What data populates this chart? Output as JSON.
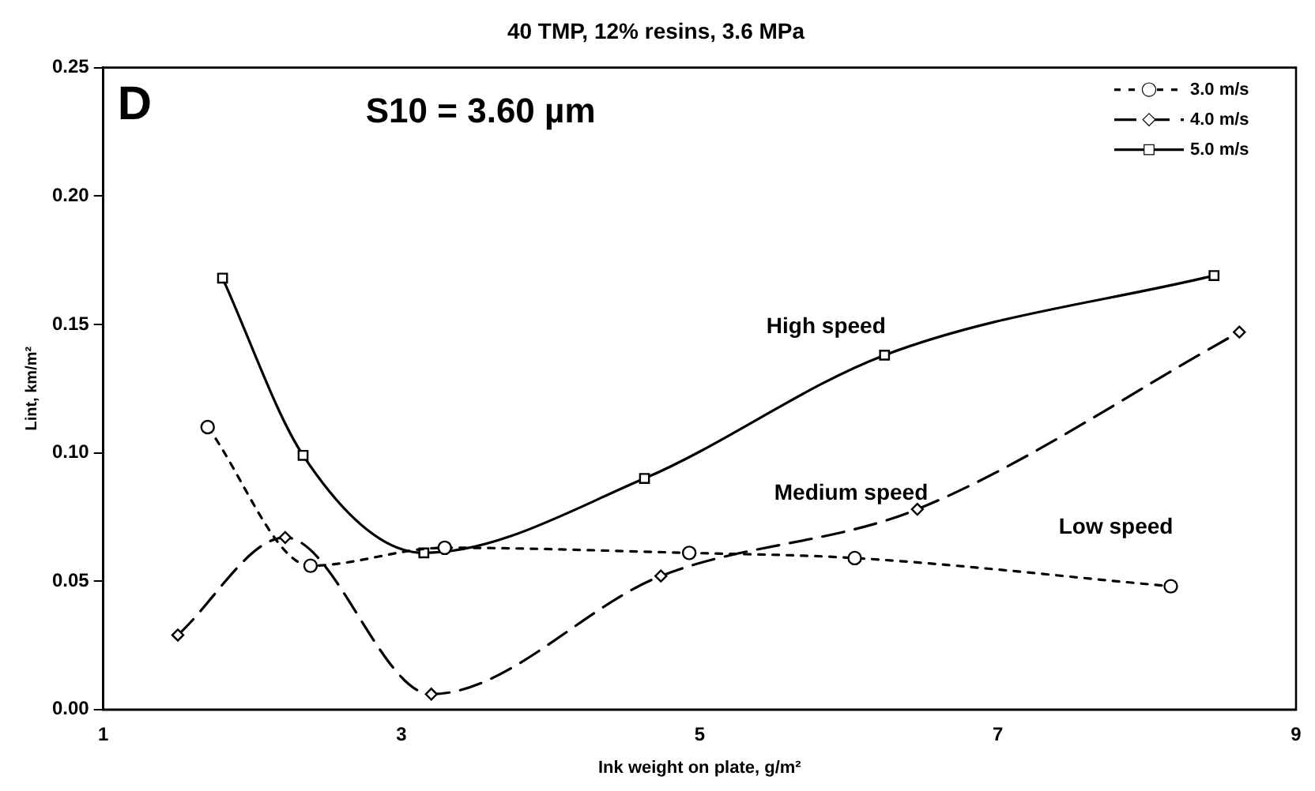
{
  "chart_data": {
    "type": "line",
    "title": "40 TMP, 12% resins, 3.6 MPa",
    "xlabel": "Ink weight on plate, g/m²",
    "ylabel": "Lint, km/m²",
    "xlim": [
      1,
      9
    ],
    "xticks": [
      1,
      3,
      5,
      7,
      9
    ],
    "ylim": [
      0,
      0.25
    ],
    "yticks": [
      {
        "value": 0,
        "label": "0.00"
      },
      {
        "value": 0.05,
        "label": "0.05"
      },
      {
        "value": 0.1,
        "label": "0.10"
      },
      {
        "value": 0.15,
        "label": "0.15"
      },
      {
        "value": 0.2,
        "label": "0.20"
      },
      {
        "value": 0.25,
        "label": "0.25"
      }
    ],
    "grid": false,
    "legend": "top right",
    "series": [
      {
        "name": "3.0 m/s",
        "color": "#000000",
        "line_style": "dotted",
        "marker": "circle",
        "x": [
          1.7,
          2.39,
          3.29,
          4.93,
          6.04,
          8.16
        ],
        "values": [
          0.11,
          0.056,
          0.063,
          0.061,
          0.059,
          0.048
        ]
      },
      {
        "name": "4.0 m/s",
        "color": "#000000",
        "line_style": "dashed",
        "marker": "diamond",
        "x": [
          1.5,
          2.22,
          3.2,
          4.74,
          6.46,
          8.62
        ],
        "values": [
          0.029,
          0.067,
          0.006,
          0.052,
          0.078,
          0.147
        ]
      },
      {
        "name": "5.0 m/s",
        "color": "#000000",
        "line_style": "solid",
        "marker": "square",
        "x": [
          1.8,
          2.34,
          3.15,
          4.63,
          6.24,
          8.45
        ],
        "values": [
          0.168,
          0.099,
          0.061,
          0.09,
          0.138,
          0.169
        ]
      }
    ],
    "annotations": [
      "D",
      "S10 = 3.60 µm",
      "High speed",
      "Medium speed",
      "Low speed"
    ]
  }
}
